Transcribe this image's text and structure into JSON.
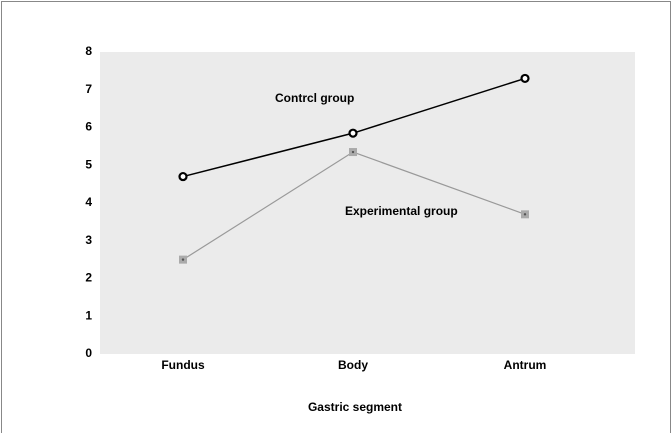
{
  "chart_data": {
    "type": "line",
    "categories": [
      "Fundus",
      "Body",
      "Antrum"
    ],
    "series": [
      {
        "name": "Contrcl group",
        "color": "#000000",
        "values": [
          4.7,
          5.85,
          7.3
        ]
      },
      {
        "name": "Experimental group",
        "color": "#999999",
        "values": [
          2.5,
          5.35,
          3.7
        ]
      }
    ],
    "x_label": "Gastric segment",
    "ylim": [
      0,
      8
    ],
    "yticks": [
      0,
      1,
      2,
      3,
      4,
      5,
      6,
      7,
      8
    ]
  }
}
